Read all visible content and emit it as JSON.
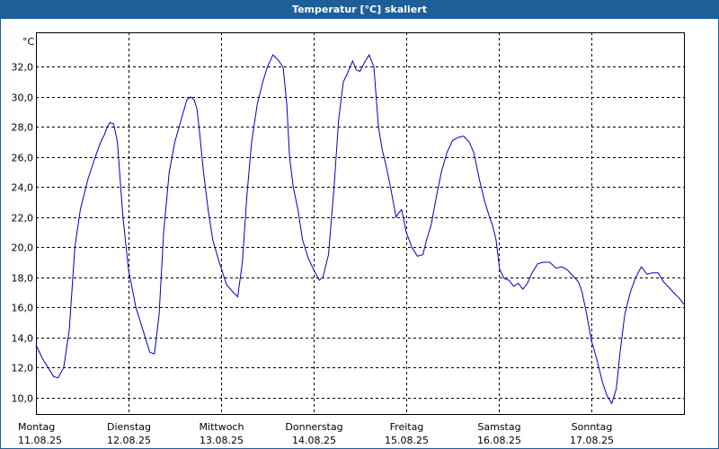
{
  "chart_data": {
    "type": "line",
    "title": "Temperatur [°C] skaliert",
    "ylabel": "°C",
    "ylim": [
      8.9,
      34.3
    ],
    "yticks": [
      10,
      12,
      14,
      16,
      18,
      20,
      22,
      24,
      26,
      28,
      30,
      32
    ],
    "ytick_labels": [
      "10,0",
      "12,0",
      "14,0",
      "16,0",
      "18,0",
      "20,0",
      "22,0",
      "24,0",
      "26,0",
      "28,0",
      "30,0",
      "32,0"
    ],
    "xlim": [
      0,
      7
    ],
    "x_categories": [
      {
        "day": "Montag",
        "date": "11.08.25"
      },
      {
        "day": "Dienstag",
        "date": "12.08.25"
      },
      {
        "day": "Mittwoch",
        "date": "13.08.25"
      },
      {
        "day": "Donnerstag",
        "date": "14.08.25"
      },
      {
        "day": "Freitag",
        "date": "15.08.25"
      },
      {
        "day": "Samstag",
        "date": "16.08.25"
      },
      {
        "day": "Sonntag",
        "date": "17.08.25"
      }
    ],
    "grid": true,
    "line_color": "#0000c8",
    "series": [
      {
        "name": "",
        "x": [
          0,
          0.07,
          0.14,
          0.19,
          0.24,
          0.3,
          0.36,
          0.42,
          0.48,
          0.56,
          0.64,
          0.7,
          0.74,
          0.77,
          0.8,
          0.84,
          0.88,
          0.94,
          1.0,
          1.08,
          1.14,
          1.19,
          1.23,
          1.28,
          1.33,
          1.38,
          1.44,
          1.5,
          1.57,
          1.63,
          1.67,
          1.71,
          1.74,
          1.77,
          1.81,
          1.86,
          1.91,
          1.98,
          2.06,
          2.13,
          2.18,
          2.23,
          2.28,
          2.33,
          2.39,
          2.45,
          2.5,
          2.56,
          2.61,
          2.67,
          2.71,
          2.74,
          2.78,
          2.83,
          2.88,
          2.94,
          3.0,
          3.06,
          3.1,
          3.16,
          3.22,
          3.27,
          3.32,
          3.36,
          3.42,
          3.46,
          3.5,
          3.55,
          3.6,
          3.65,
          3.7,
          3.74,
          3.78,
          3.83,
          3.86,
          3.89,
          3.92,
          3.95,
          4.0,
          4.06,
          4.12,
          4.18,
          4.22,
          4.27,
          4.33,
          4.38,
          4.44,
          4.5,
          4.56,
          4.62,
          4.68,
          4.73,
          4.79,
          4.85,
          4.9,
          4.93,
          4.97,
          5.01,
          5.06,
          5.11,
          5.16,
          5.21,
          5.26,
          5.31,
          5.36,
          5.42,
          5.48,
          5.55,
          5.62,
          5.68,
          5.74,
          5.8,
          5.86,
          5.9,
          5.95,
          6.0,
          6.06,
          6.12,
          6.17,
          6.22,
          6.27,
          6.31,
          6.36,
          6.42,
          6.48,
          6.54,
          6.6,
          6.66,
          6.72,
          6.78,
          6.84,
          6.9,
          6.95,
          7.0
        ],
        "values": [
          13.5,
          12.6,
          11.9,
          11.4,
          11.3,
          12.0,
          14.5,
          20.0,
          22.5,
          24.5,
          26.0,
          27.0,
          27.5,
          28.0,
          28.3,
          28.2,
          27.0,
          22.0,
          18.5,
          16.0,
          14.8,
          13.8,
          13.0,
          12.9,
          15.5,
          21.0,
          25.0,
          27.0,
          28.5,
          29.8,
          30.0,
          29.8,
          29.2,
          27.5,
          25.0,
          22.5,
          20.5,
          19.0,
          17.5,
          17.0,
          16.7,
          19.0,
          23.5,
          27.0,
          29.5,
          31.0,
          32.0,
          32.8,
          32.5,
          32.0,
          29.5,
          26.0,
          24.0,
          22.5,
          20.5,
          19.3,
          18.5,
          17.8,
          18.0,
          19.5,
          24.0,
          28.5,
          31.0,
          31.5,
          32.4,
          31.8,
          31.7,
          32.3,
          32.8,
          32.0,
          28.0,
          26.5,
          25.5,
          24.0,
          23.0,
          22.0,
          22.3,
          22.5,
          21.0,
          20.0,
          19.4,
          19.5,
          20.5,
          21.5,
          23.5,
          25.0,
          26.3,
          27.1,
          27.3,
          27.4,
          27.0,
          26.3,
          24.5,
          23.0,
          22.0,
          21.5,
          20.5,
          18.5,
          17.9,
          17.8,
          17.4,
          17.6,
          17.2,
          17.6,
          18.3,
          18.9,
          19.0,
          19.0,
          18.6,
          18.7,
          18.5,
          18.1,
          17.7,
          17.0,
          15.5,
          13.8,
          12.5,
          11.0,
          10.1,
          9.6,
          10.6,
          13.0,
          15.5,
          17.0,
          18.0,
          18.7,
          18.2,
          18.3,
          18.3,
          17.7,
          17.3,
          16.9,
          16.6,
          16.2
        ]
      }
    ]
  }
}
